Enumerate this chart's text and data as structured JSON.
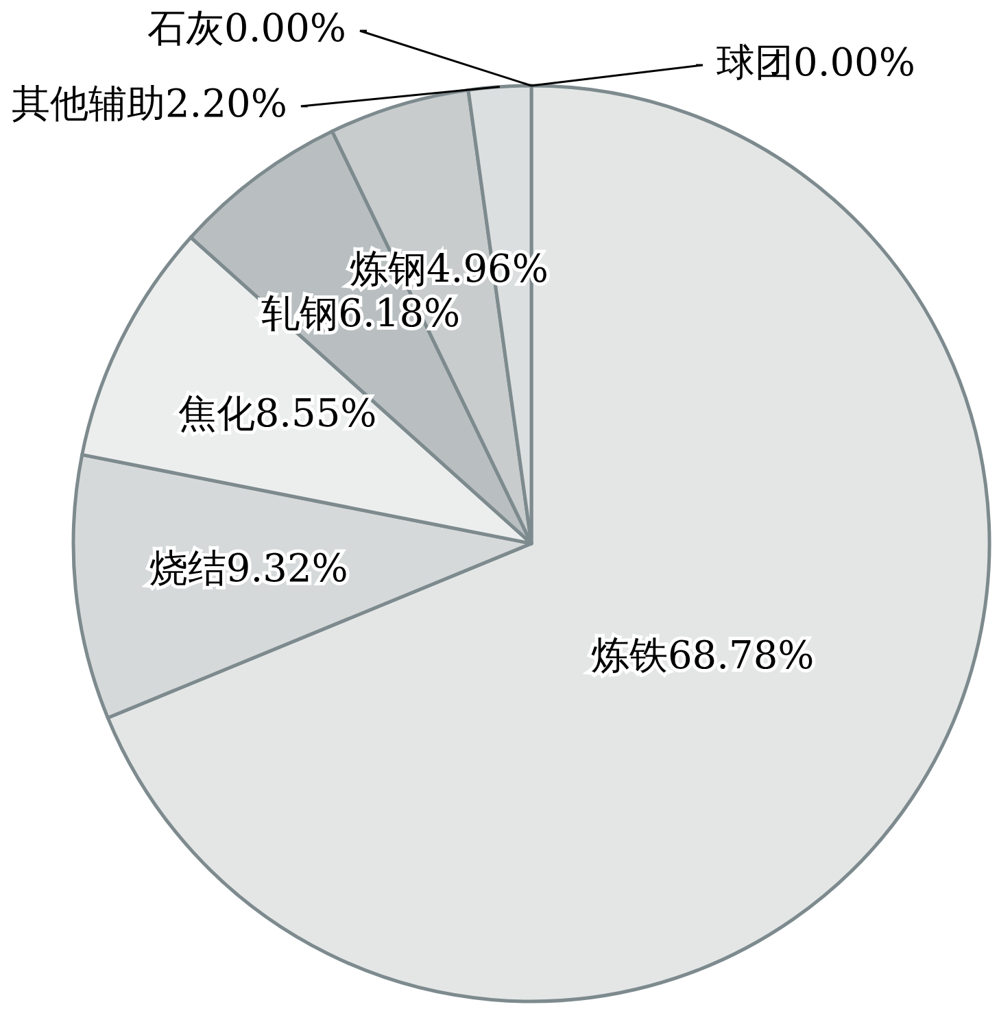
{
  "chart_data": {
    "type": "pie",
    "categories": [
      "炼铁",
      "烧结",
      "焦化",
      "轧钢",
      "炼钢",
      "其他辅助",
      "石灰",
      "球团"
    ],
    "values": [
      68.78,
      9.32,
      8.55,
      6.18,
      4.96,
      2.2,
      0.0,
      0.0
    ],
    "value_labels": [
      "68.78%",
      "9.32%",
      "8.55%",
      "6.18%",
      "4.96%",
      "2.20%",
      "0.00%",
      "0.00%"
    ],
    "colors": [
      "#e4e6e6",
      "#d6d9da",
      "#eceeee",
      "#b9bfc1",
      "#c8cccd",
      "#dcdfe0",
      "#cfd3d4",
      "#e8eaea"
    ],
    "data_labels": true
  }
}
